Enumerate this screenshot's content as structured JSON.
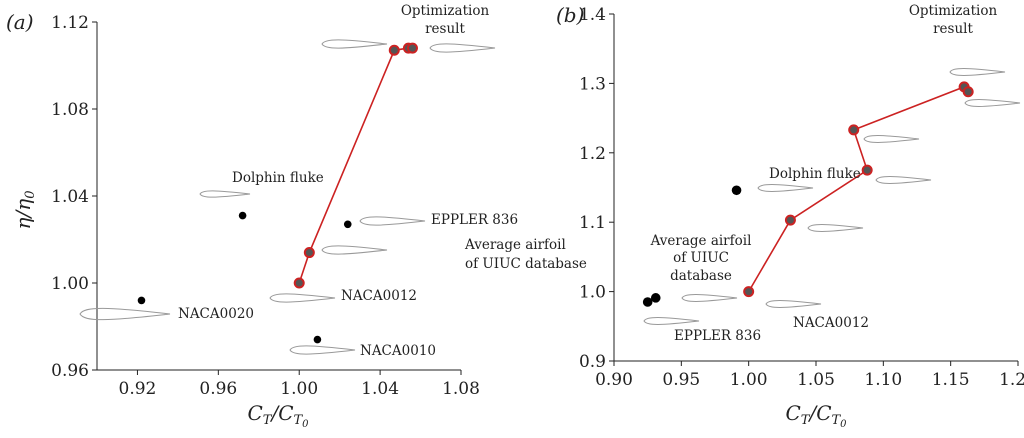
{
  "chart_data": [
    {
      "type": "scatter",
      "panel_label": "(a)",
      "xlim": [
        0.9,
        1.08
      ],
      "ylim": [
        0.96,
        1.12
      ],
      "xticks": [
        "0.92",
        "0.96",
        "1.00",
        "1.04",
        "1.08"
      ],
      "yticks": [
        "0.96",
        "1.00",
        "1.04",
        "1.08",
        "1.12"
      ],
      "xlabel": {
        "main": "C",
        "sub": "T",
        "denom_main": "C",
        "denom_sub": "T",
        "denom_subsub": "0"
      },
      "ylabel": {
        "main": "η",
        "denom_main": "η",
        "denom_sub": "0"
      },
      "optimization_path": {
        "x": [
          1.0,
          1.005,
          1.047,
          1.054,
          1.056
        ],
        "y": [
          1.0,
          1.014,
          1.107,
          1.108,
          1.108
        ]
      },
      "points": [
        {
          "x": 0.922,
          "y": 0.992,
          "label": "NACA0020"
        },
        {
          "x": 0.972,
          "y": 1.031,
          "label": "Dolphin fluke"
        },
        {
          "x": 1.024,
          "y": 1.027,
          "label": "EPPLER 836"
        },
        {
          "x": 1.009,
          "y": 0.974,
          "label": "NACA0010"
        }
      ],
      "annotations": [
        {
          "id": "optimization",
          "lines": [
            "Optimization",
            "result"
          ]
        },
        {
          "id": "dolphin",
          "lines": [
            "Dolphin fluke"
          ]
        },
        {
          "id": "eppler",
          "lines": [
            "EPPLER 836"
          ]
        },
        {
          "id": "average",
          "lines": [
            "Average airfoil",
            "of UIUC database"
          ]
        },
        {
          "id": "naca0012",
          "lines": [
            "NACA0012"
          ]
        },
        {
          "id": "naca0020",
          "lines": [
            "NACA0020"
          ]
        },
        {
          "id": "naca0010",
          "lines": [
            "NACA0010"
          ]
        }
      ]
    },
    {
      "type": "scatter",
      "panel_label": "(b)",
      "xlim": [
        0.9,
        1.2
      ],
      "ylim": [
        0.9,
        1.4
      ],
      "xticks": [
        "0.90",
        "0.95",
        "1.00",
        "1.05",
        "1.10",
        "1.15",
        "1.20"
      ],
      "yticks": [
        "0.9",
        "1.0",
        "1.1",
        "1.2",
        "1.3",
        "1.4"
      ],
      "xlabel": {
        "main": "C",
        "sub": "T",
        "denom_main": "C",
        "denom_sub": "T",
        "denom_subsub": "0"
      },
      "optimization_path": {
        "x": [
          1.0,
          1.031,
          1.088,
          1.078,
          1.16,
          1.163
        ],
        "y": [
          1.0,
          1.103,
          1.175,
          1.233,
          1.295,
          1.288
        ]
      },
      "points": [
        {
          "x": 0.991,
          "y": 1.146,
          "label": "Dolphin fluke"
        },
        {
          "x": 0.925,
          "y": 0.985,
          "label": "EPPLER 836"
        },
        {
          "x": 0.931,
          "y": 0.991,
          "label": "Average airfoil of UIUC database"
        }
      ],
      "annotations": [
        {
          "id": "optimization",
          "lines": [
            "Optimization",
            "result"
          ]
        },
        {
          "id": "dolphin",
          "lines": [
            "Dolphin fluke"
          ]
        },
        {
          "id": "average",
          "lines": [
            "Average airfoil",
            "of UIUC",
            "database"
          ]
        },
        {
          "id": "eppler",
          "lines": [
            "EPPLER 836"
          ]
        },
        {
          "id": "naca0012",
          "lines": [
            "NACA0012"
          ]
        }
      ]
    }
  ]
}
